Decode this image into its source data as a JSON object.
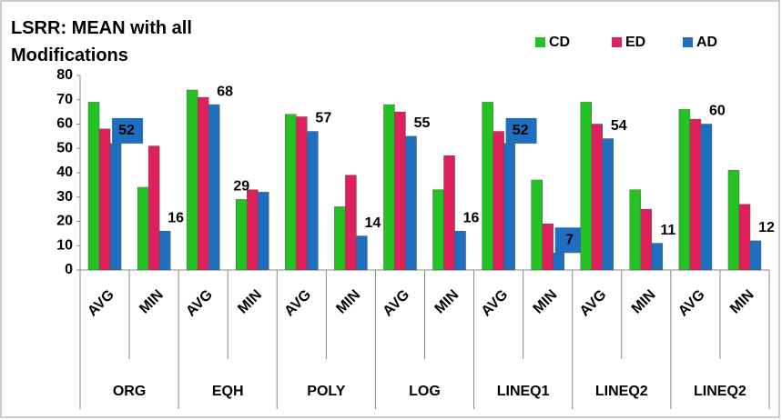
{
  "chart_data": {
    "type": "bar",
    "title": "LSRR: MEAN with all Modifications",
    "categories": [
      "AVG",
      "MIN",
      "AVG",
      "MIN",
      "AVG",
      "MIN",
      "AVG",
      "MIN",
      "AVG",
      "MIN",
      "AVG",
      "MIN",
      "AVG",
      "MIN"
    ],
    "groups": [
      "ORG",
      "EQH",
      "POLY",
      "LOG",
      "LINEQ1",
      "LINEQ2",
      "LINEQ2"
    ],
    "series": [
      {
        "name": "CD",
        "color": "#22c322",
        "values": [
          69,
          34,
          74,
          29,
          64,
          26,
          68,
          33,
          69,
          37,
          69,
          33,
          66,
          41
        ],
        "value_labels": [
          null,
          null,
          null,
          "29",
          null,
          null,
          null,
          null,
          null,
          null,
          null,
          null,
          null,
          null
        ]
      },
      {
        "name": "ED",
        "color": "#e0205a",
        "values": [
          58,
          51,
          71,
          33,
          63,
          39,
          65,
          47,
          57,
          19,
          60,
          25,
          62,
          27
        ]
      },
      {
        "name": "AD",
        "color": "#1e6fc0",
        "values": [
          52,
          16,
          68,
          32,
          57,
          14,
          55,
          16,
          52,
          7,
          54,
          11,
          60,
          12
        ],
        "value_labels": [
          "52",
          "16",
          "68",
          null,
          "57",
          "14",
          "55",
          "16",
          "52",
          "7",
          "54",
          "11",
          "60",
          "12"
        ]
      }
    ],
    "ylim": [
      0,
      80
    ],
    "yticks": [
      0,
      10,
      20,
      30,
      40,
      50,
      60,
      70,
      80
    ],
    "legend": "top-right"
  }
}
